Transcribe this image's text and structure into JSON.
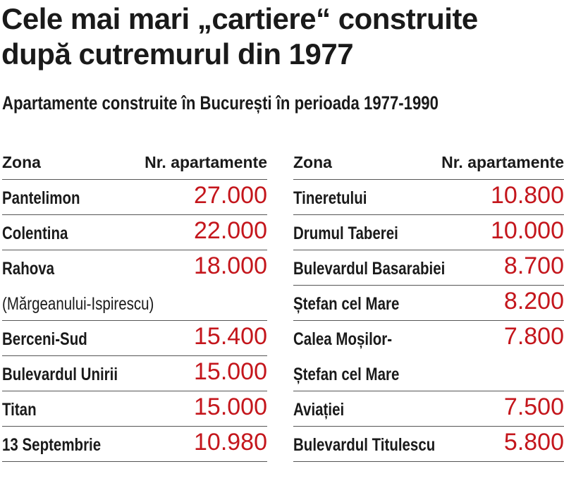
{
  "title_line1": "Cele mai mari „cartiere“ construite",
  "title_line2": "după cutremurul din 1977",
  "subtitle": "Apartamente construite în București în perioada 1977-1990",
  "accent_color": "#c4161c",
  "left_table": {
    "header_zone": "Zona",
    "header_count": "Nr. apartamente",
    "rows": [
      {
        "name": "Pantelimon",
        "value": "27.000"
      },
      {
        "name": "Colentina",
        "value": "22.000"
      },
      {
        "name": "Rahova",
        "value": "18.000",
        "name_cont": "(Mărgeanului-Ispirescu)"
      },
      {
        "name": "Berceni-Sud",
        "value": "15.400"
      },
      {
        "name": "Bulevardul Unirii",
        "value": "15.000"
      },
      {
        "name": "Titan",
        "value": "15.000"
      },
      {
        "name": "13 Septembrie",
        "value": "10.980"
      }
    ]
  },
  "right_table": {
    "header_zone": "Zona",
    "header_count": "Nr. apartamente",
    "rows": [
      {
        "name": "Tineretului",
        "value": "10.800"
      },
      {
        "name": "Drumul Taberei",
        "value": "10.000"
      },
      {
        "name": "Bulevardul Basarabiei",
        "value": "8.700"
      },
      {
        "name": "Ștefan cel Mare",
        "value": "8.200"
      },
      {
        "name": "Calea Moșilor-",
        "value": "7.800",
        "name_cont": "Ștefan cel Mare"
      },
      {
        "name": "Aviației",
        "value": "7.500"
      },
      {
        "name": "Bulevardul Titulescu",
        "value": "5.800"
      }
    ]
  }
}
